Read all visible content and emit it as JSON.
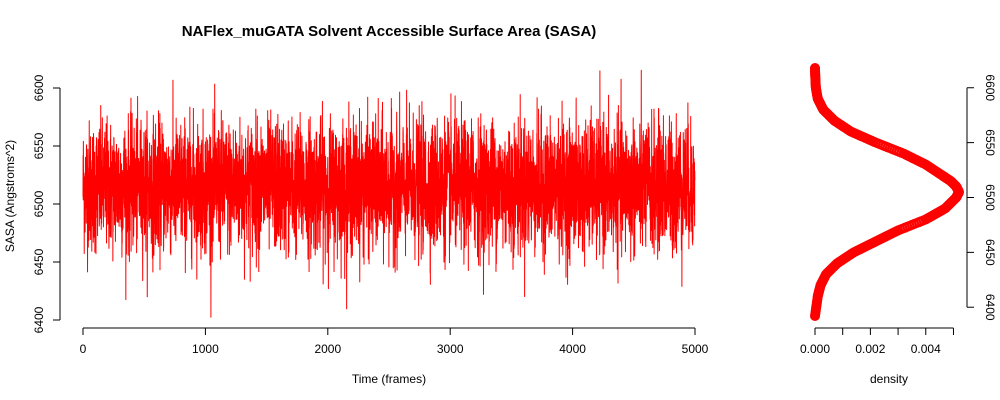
{
  "chart_data": [
    {
      "type": "line",
      "title": "NAFlex_muGATA Solvent Accessible Surface Area (SASA)",
      "xlabel": "Time (frames)",
      "ylabel": "SASA (Angstroms^2)",
      "xlim": [
        0,
        5000
      ],
      "ylim": [
        6400,
        6600
      ],
      "x_ticks": [
        "0",
        "1000",
        "2000",
        "3000",
        "4000",
        "5000"
      ],
      "y_ticks": [
        "6400",
        "6450",
        "6500",
        "6550",
        "6600"
      ],
      "series": [
        {
          "color": "#ff0000",
          "n_frames": 5000,
          "mean": 6515,
          "sd": 28,
          "min": 6398,
          "max": 6617
        }
      ],
      "grid": false
    },
    {
      "type": "line",
      "xlabel": "density",
      "xlim": [
        0,
        0.0052
      ],
      "ylim": [
        6400,
        6600
      ],
      "x_ticks": [
        "0.000",
        "0.002",
        "0.004"
      ],
      "y_ticks": [
        "6400",
        "6450",
        "6500",
        "6550",
        "6600"
      ],
      "y_axis_side": "right",
      "series": [
        {
          "color": "#ff0000",
          "y": [
            6392,
            6410,
            6420,
            6430,
            6440,
            6450,
            6460,
            6470,
            6480,
            6490,
            6500,
            6505,
            6510,
            6515,
            6520,
            6530,
            6540,
            6550,
            6560,
            6570,
            6580,
            6590,
            6600,
            6610,
            6618
          ],
          "x": [
            0.0,
            0.0001,
            0.0002,
            0.0004,
            0.0008,
            0.0014,
            0.0022,
            0.003,
            0.004,
            0.0047,
            0.0051,
            0.0052,
            0.0051,
            0.0049,
            0.0046,
            0.004,
            0.0032,
            0.0022,
            0.0013,
            0.0007,
            0.0003,
            0.0001,
            3e-05,
            1e-05,
            0.0
          ]
        }
      ]
    }
  ]
}
